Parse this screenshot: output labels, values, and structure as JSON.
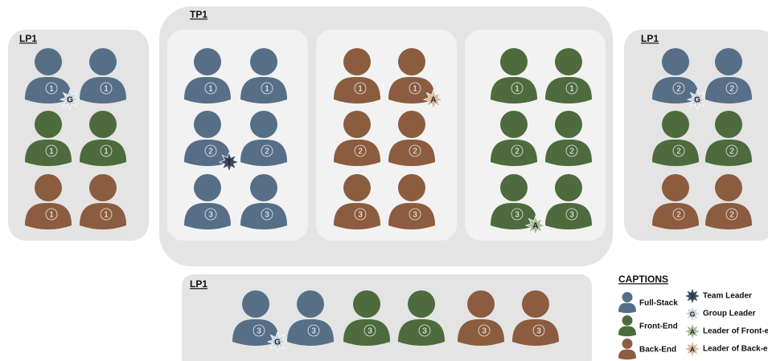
{
  "panels": [
    {
      "title": "LP1",
      "people": [
        {
          "number": "1",
          "color": "#566f87",
          "badge": {
            "letter": "G",
            "color": "#c9d5de"
          }
        },
        {
          "number": "1",
          "color": "#566f87"
        },
        {
          "number": "1",
          "color": "#4d6b3d"
        },
        {
          "number": "1",
          "color": "#4d6b3d"
        },
        {
          "number": "1",
          "color": "#8b5c3f"
        },
        {
          "number": "1",
          "color": "#8b5c3f"
        }
      ]
    },
    {
      "title": "TP1",
      "groups": [
        {
          "people": [
            {
              "number": "1",
              "color": "#566f87"
            },
            {
              "number": "1",
              "color": "#566f87"
            },
            {
              "number": "2",
              "color": "#566f87",
              "badge": {
                "letter": "T",
                "color": "#3a4a5e"
              }
            },
            {
              "number": "2",
              "color": "#566f87"
            },
            {
              "number": "3",
              "color": "#566f87"
            },
            {
              "number": "3",
              "color": "#566f87"
            }
          ]
        },
        {
          "people": [
            {
              "number": "1",
              "color": "#8b5c3f"
            },
            {
              "number": "1",
              "color": "#8b5c3f",
              "badge": {
                "letter": "A",
                "color": "#dcb8a0"
              }
            },
            {
              "number": "2",
              "color": "#8b5c3f"
            },
            {
              "number": "2",
              "color": "#8b5c3f"
            },
            {
              "number": "3",
              "color": "#8b5c3f"
            },
            {
              "number": "3",
              "color": "#8b5c3f"
            }
          ]
        },
        {
          "people": [
            {
              "number": "1",
              "color": "#4d6b3d"
            },
            {
              "number": "1",
              "color": "#4d6b3d"
            },
            {
              "number": "2",
              "color": "#4d6b3d"
            },
            {
              "number": "2",
              "color": "#4d6b3d"
            },
            {
              "number": "3",
              "color": "#4d6b3d",
              "badge": {
                "letter": "A",
                "color": "#a8bd98"
              }
            },
            {
              "number": "3",
              "color": "#4d6b3d"
            }
          ]
        }
      ]
    },
    {
      "title": "LP1",
      "people": [
        {
          "number": "2",
          "color": "#566f87",
          "badge": {
            "letter": "G",
            "color": "#c9d5de"
          }
        },
        {
          "number": "2",
          "color": "#566f87"
        },
        {
          "number": "2",
          "color": "#4d6b3d"
        },
        {
          "number": "2",
          "color": "#4d6b3d"
        },
        {
          "number": "2",
          "color": "#8b5c3f"
        },
        {
          "number": "2",
          "color": "#8b5c3f"
        }
      ]
    },
    {
      "title": "LP1",
      "people": [
        {
          "number": "3",
          "color": "#566f87",
          "badge": {
            "letter": "G",
            "color": "#c9d5de"
          }
        },
        {
          "number": "3",
          "color": "#566f87"
        },
        {
          "number": "3",
          "color": "#4d6b3d"
        },
        {
          "number": "3",
          "color": "#4d6b3d"
        },
        {
          "number": "3",
          "color": "#8b5c3f"
        },
        {
          "number": "3",
          "color": "#8b5c3f"
        }
      ]
    }
  ],
  "captions": {
    "title": "CAPTIONS",
    "roles": [
      {
        "label": "Full-Stack",
        "color": "#566f87"
      },
      {
        "label": "Front-End",
        "color": "#4d6b3d"
      },
      {
        "label": "Back-End",
        "color": "#8b5c3f"
      }
    ],
    "leaders": [
      {
        "letter": "T",
        "label": "Team Leader",
        "color": "#3a4a5e"
      },
      {
        "letter": "G",
        "label": "Group Leader",
        "color": "#c9d5de"
      },
      {
        "letter": "A",
        "label": "Leader of Front-end",
        "color": "#a8bd98"
      },
      {
        "letter": "A",
        "label": "Leader of Back-end",
        "color": "#dcb8a0"
      }
    ]
  }
}
